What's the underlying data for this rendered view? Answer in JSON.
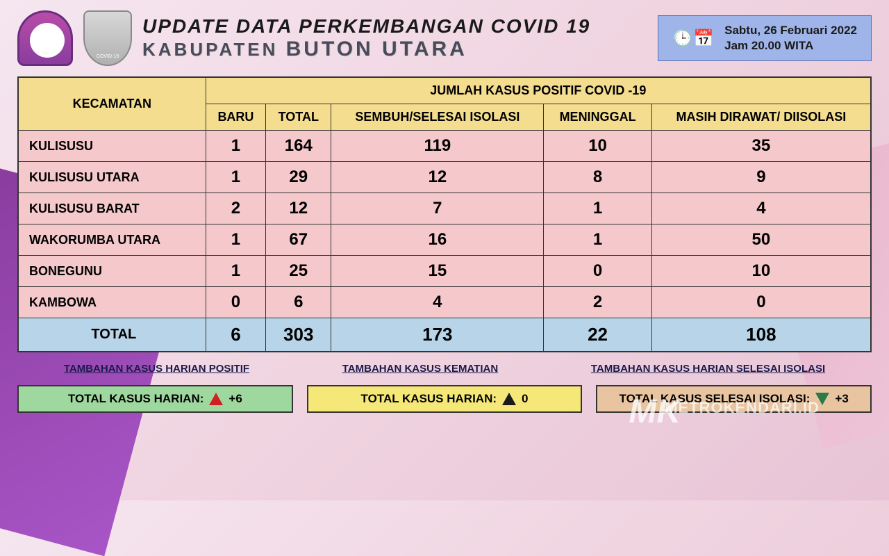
{
  "header": {
    "title": "UPDATE DATA PERKEMBANGAN COVID 19",
    "subtitle_prefix": "KABUPATEN",
    "subtitle_main": "BUTON UTARA",
    "date_line1": "Sabtu, 26 Februari 2022",
    "date_line2": "Jam 20.00 WITA",
    "logo2_text": "COVID-19"
  },
  "table": {
    "col_kecamatan": "KECAMATAN",
    "col_group": "JUMLAH KASUS POSITIF COVID -19",
    "columns": [
      "BARU",
      "TOTAL",
      "SEMBUH/SELESAI ISOLASI",
      "MENINGGAL",
      "MASIH DIRAWAT/ DIISOLASI"
    ],
    "rows": [
      {
        "name": "KULISUSU",
        "baru": "1",
        "total": "164",
        "sembuh": "119",
        "meninggal": "10",
        "dirawat": "35"
      },
      {
        "name": "KULISUSU UTARA",
        "baru": "1",
        "total": "29",
        "sembuh": "12",
        "meninggal": "8",
        "dirawat": "9"
      },
      {
        "name": "KULISUSU BARAT",
        "baru": "2",
        "total": "12",
        "sembuh": "7",
        "meninggal": "1",
        "dirawat": "4"
      },
      {
        "name": "WAKORUMBA UTARA",
        "baru": "1",
        "total": "67",
        "sembuh": "16",
        "meninggal": "1",
        "dirawat": "50"
      },
      {
        "name": "BONEGUNU",
        "baru": "1",
        "total": "25",
        "sembuh": "15",
        "meninggal": "0",
        "dirawat": "10"
      },
      {
        "name": "KAMBOWA",
        "baru": "0",
        "total": "6",
        "sembuh": "4",
        "meninggal": "2",
        "dirawat": "0"
      }
    ],
    "total_label": "TOTAL",
    "total": {
      "baru": "6",
      "total": "303",
      "sembuh": "173",
      "meninggal": "22",
      "dirawat": "108"
    }
  },
  "footer": {
    "link1": "TAMBAHAN KASUS HARIAN POSITIF",
    "link2": "TAMBAHAN KASUS KEMATIAN",
    "link3": "TAMBAHAN KASUS HARIAN SELESAI ISOLASI",
    "box1_label": "TOTAL KASUS HARIAN:",
    "box1_value": "+6",
    "box2_label": "TOTAL KASUS HARIAN:",
    "box2_value": "0",
    "box3_label": "TOTAL KASUS SELESAI ISOLASI:",
    "box3_value": "+3"
  },
  "watermark": {
    "logo": "MK",
    "text": "METROKENDARI.ID"
  },
  "colors": {
    "header_bg": "#f5dd8f",
    "row_bg": "#f5c8cc",
    "total_bg": "#b8d4e8",
    "date_bg": "#9fb4e8",
    "green": "#9fd89f",
    "yellow": "#f5e878",
    "tan": "#e8c4a0"
  }
}
